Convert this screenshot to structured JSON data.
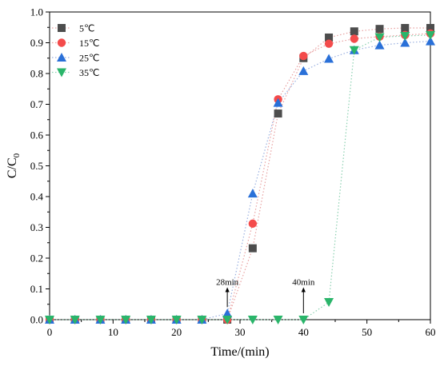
{
  "chart_data": {
    "type": "scatter",
    "xlabel": "Time/(min)",
    "ylabel": "C/C",
    "ylabel_sub": "0",
    "xlim": [
      0,
      60
    ],
    "ylim": [
      0,
      1.0
    ],
    "x_ticks": [
      0,
      10,
      20,
      30,
      40,
      50,
      60
    ],
    "x_tick_labels": [
      "0",
      "10",
      "20",
      "30",
      "40",
      "50",
      "60"
    ],
    "y_ticks": [
      0,
      0.1,
      0.2,
      0.3,
      0.4,
      0.5,
      0.6,
      0.7,
      0.8,
      0.9,
      1.0
    ],
    "y_tick_labels": [
      "0.0",
      "0.1",
      "0.2",
      "0.3",
      "0.4",
      "0.5",
      "0.6",
      "0.7",
      "0.8",
      "0.9",
      "1.0"
    ],
    "grid": false,
    "legend_position": "top-left",
    "series": [
      {
        "name": "5℃",
        "marker": "square",
        "color": "#4d4d4d",
        "line_color": "#e8a0a0",
        "x": [
          0,
          4,
          8,
          12,
          16,
          20,
          24,
          28,
          32,
          36,
          40,
          44,
          48,
          52,
          56,
          60
        ],
        "y": [
          0,
          0,
          0,
          0,
          0,
          0,
          0,
          0,
          0.232,
          0.67,
          0.85,
          0.917,
          0.937,
          0.945,
          0.948,
          0.948
        ]
      },
      {
        "name": "15℃",
        "marker": "circle",
        "color": "#f44b4b",
        "line_color": "#e8a0a0",
        "x": [
          0,
          4,
          8,
          12,
          16,
          20,
          24,
          28,
          32,
          36,
          40,
          44,
          48,
          52,
          56,
          60
        ],
        "y": [
          0,
          0,
          0,
          0,
          0,
          0,
          0,
          0,
          0.312,
          0.716,
          0.857,
          0.897,
          0.913,
          0.92,
          0.925,
          0.93
        ]
      },
      {
        "name": "25℃",
        "marker": "triangle-up",
        "color": "#2a70d8",
        "line_color": "#9ab0e0",
        "x": [
          0,
          4,
          8,
          12,
          16,
          20,
          24,
          28,
          32,
          36,
          40,
          44,
          48,
          52,
          56,
          60
        ],
        "y": [
          0,
          0,
          0,
          0,
          0,
          0,
          0,
          0.02,
          0.41,
          0.705,
          0.808,
          0.848,
          0.876,
          0.892,
          0.9,
          0.905
        ]
      },
      {
        "name": "35℃",
        "marker": "triangle-down",
        "color": "#2ab56a",
        "line_color": "#8ad0b0",
        "x": [
          0,
          4,
          8,
          12,
          16,
          20,
          24,
          28,
          32,
          36,
          40,
          44,
          48,
          52,
          56,
          60
        ],
        "y": [
          0,
          0,
          0,
          0,
          0,
          0,
          0,
          0,
          0,
          0,
          0,
          0.057,
          0.876,
          0.918,
          0.922,
          0.925
        ]
      }
    ],
    "annotations": [
      {
        "text": "28min",
        "x": 28,
        "y": 0.02
      },
      {
        "text": "40min",
        "x": 40,
        "y": 0.0
      }
    ]
  }
}
